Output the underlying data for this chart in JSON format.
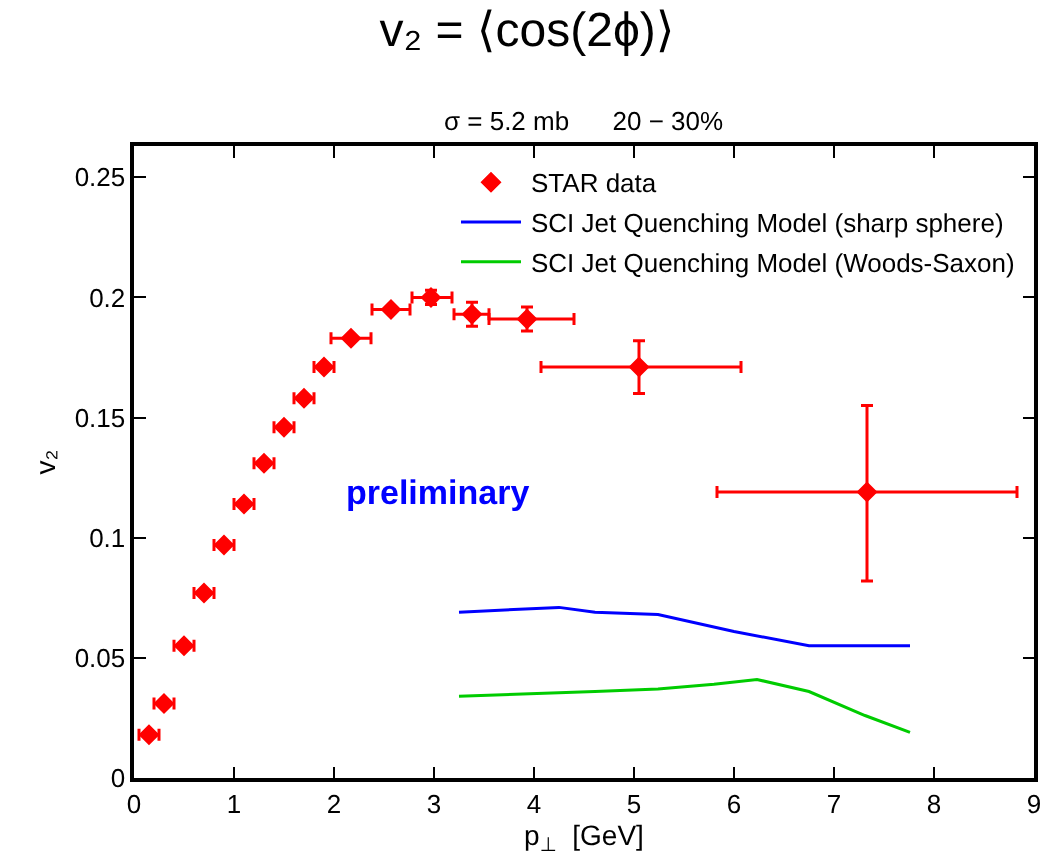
{
  "chart_data": {
    "type": "scatter",
    "title": "v₂ = ⟨cos(2ϕ)⟩",
    "subtitle": "σ = 5.2 mb      20 − 30%",
    "xlabel": "p$_{⊥}$  [GeV]",
    "ylabel": "v₂",
    "annotations": [
      "preliminary"
    ],
    "xlim": [
      0,
      9
    ],
    "xticks": [
      0,
      1,
      2,
      3,
      4,
      5,
      6,
      7,
      8,
      9
    ],
    "ylim": [
      0,
      0.263
    ],
    "yticks": [
      0,
      0.05,
      0.1,
      0.15,
      0.2,
      0.25
    ],
    "grid": false,
    "legend": "top right",
    "series": [
      {
        "name": "STAR data",
        "color": "#ff0000",
        "x": [
          0.15,
          0.3,
          0.5,
          0.7,
          0.9,
          1.1,
          1.3,
          1.5,
          1.7,
          1.9,
          2.17,
          2.57,
          2.97,
          3.38,
          3.93,
          5.05,
          7.33
        ],
        "values": [
          0.018,
          0.031,
          0.055,
          0.077,
          0.097,
          0.114,
          0.131,
          0.146,
          0.158,
          0.171,
          0.183,
          0.195,
          0.2,
          0.193,
          0.191,
          0.171,
          0.119
        ],
        "errors": [
          null,
          null,
          null,
          null,
          null,
          null,
          null,
          null,
          null,
          null,
          null,
          null,
          0.003,
          0.005,
          0.005,
          [
            0.16,
            0.182
          ],
          [
            0.082,
            0.155
          ]
        ],
        "xerrors": [
          0.1,
          0.1,
          0.1,
          0.1,
          0.1,
          0.1,
          0.1,
          0.1,
          0.1,
          0.1,
          [
            1.97,
            2.37
          ],
          [
            2.38,
            2.76
          ],
          [
            2.78,
            3.18
          ],
          [
            3.2,
            3.55
          ],
          [
            3.55,
            4.4
          ],
          [
            4.07,
            6.07
          ],
          [
            5.83,
            8.83
          ]
        ]
      },
      {
        "name": "SCI Jet Quenching Model (sharp sphere)",
        "type": "line",
        "color": "#0000ff",
        "x": [
          3.25,
          4.25,
          4.61,
          5.24,
          6.0,
          6.75,
          7.76
        ],
        "values": [
          0.069,
          0.071,
          0.069,
          0.068,
          0.061,
          0.055,
          0.055
        ]
      },
      {
        "name": "SCI Jet Quenching Model (Woods-Saxon)",
        "type": "line",
        "color": "#00cc00",
        "x": [
          3.25,
          4.61,
          5.24,
          5.8,
          6.23,
          6.75,
          7.31,
          7.76
        ],
        "values": [
          0.034,
          0.036,
          0.037,
          0.039,
          0.041,
          0.036,
          0.026,
          0.019
        ]
      }
    ]
  }
}
